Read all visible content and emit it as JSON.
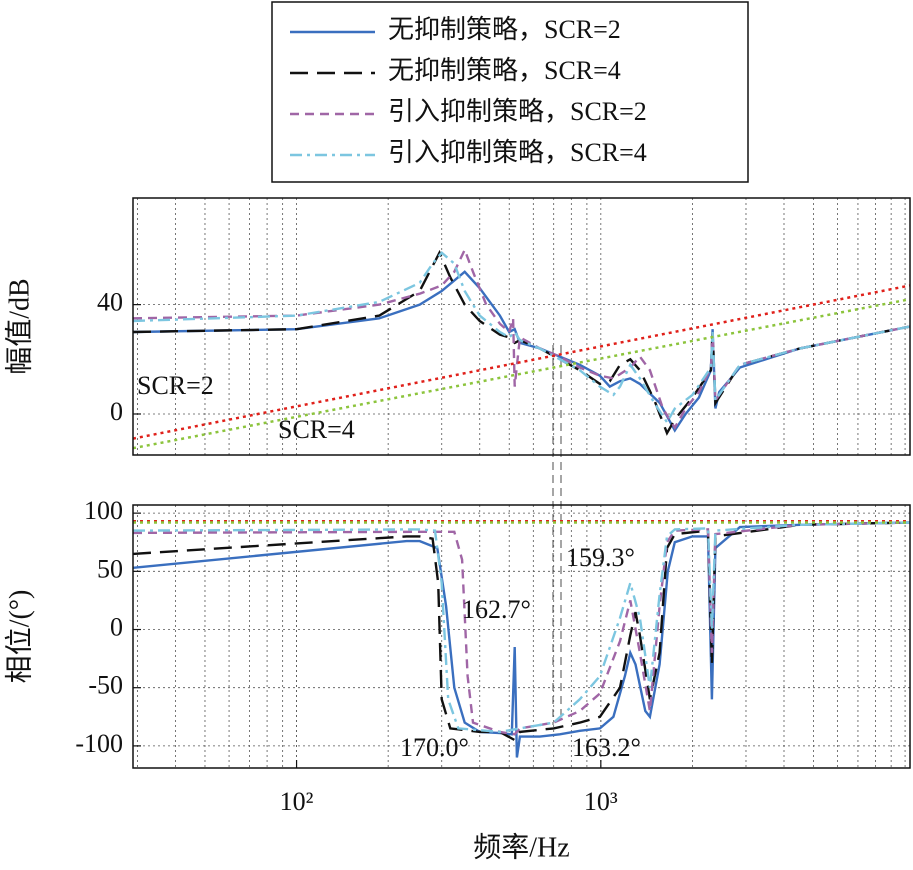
{
  "chart_data": [
    {
      "type": "line",
      "xscale": "log",
      "xlim": [
        29,
        10380
      ],
      "ylim": [
        -15,
        79
      ],
      "yticks": [
        0,
        40
      ],
      "ylabel": "幅值/dB",
      "grid": true,
      "minor_grid": true,
      "legend": "top",
      "annotations": [
        {
          "text": "SCR=2",
          "color": "#111111"
        },
        {
          "text": "SCR=4",
          "color": "#111111"
        }
      ],
      "series": [
        {
          "name": "无抑制策略，SCR=2",
          "color": "#3a6fbf",
          "linestyle": "solid",
          "x": [
            29,
            100,
            187,
            254,
            300,
            357,
            400,
            466,
            500,
            521,
            542,
            630,
            733,
            853,
            993,
            1070,
            1156,
            1250,
            1344,
            1564,
            1751,
            1900,
            2100,
            2300,
            2330,
            2380,
            2450,
            2866,
            4516,
            10380
          ],
          "values": [
            30,
            31,
            35,
            40,
            45,
            52,
            46,
            36,
            30,
            31,
            26,
            24,
            21,
            18,
            14,
            10,
            12,
            13,
            11,
            4,
            -6,
            0,
            6,
            16,
            31,
            2,
            8,
            17,
            24,
            32
          ]
        },
        {
          "name": "无抑制策略，SCR=4",
          "color": "#111111",
          "linestyle": "dashed",
          "x": [
            29,
            100,
            187,
            254,
            295,
            320,
            357,
            400,
            466,
            500,
            521,
            542,
            630,
            733,
            853,
            993,
            1070,
            1156,
            1250,
            1344,
            1500,
            1650,
            1751,
            2000,
            2300,
            2330,
            2380,
            2866,
            4516,
            10380
          ],
          "values": [
            30,
            31,
            36,
            45,
            59,
            50,
            40,
            34,
            29,
            28,
            26,
            27,
            24,
            20,
            16,
            11,
            12,
            18,
            20,
            16,
            5,
            -7,
            -2,
            6,
            16,
            30,
            4,
            18,
            24,
            32
          ]
        },
        {
          "name": "引入抑制策略，SCR=2",
          "color": "#a066a6",
          "linestyle": "shortdash",
          "x": [
            29,
            100,
            187,
            254,
            300,
            330,
            357,
            380,
            420,
            466,
            500,
            515,
            521,
            542,
            630,
            733,
            853,
            993,
            1100,
            1250,
            1344,
            1450,
            1600,
            1751,
            1900,
            2100,
            2300,
            2330,
            2380,
            2866,
            4516,
            10380
          ],
          "values": [
            35,
            36,
            40,
            44,
            47,
            52,
            60,
            52,
            40,
            33,
            30,
            35,
            10,
            28,
            24,
            21,
            17,
            14,
            13,
            17,
            21,
            16,
            2,
            -5,
            2,
            8,
            17,
            30,
            5,
            18,
            24,
            32
          ]
        },
        {
          "name": "引入抑制策略，SCR=4",
          "color": "#7cc6e0",
          "linestyle": "dashdot",
          "x": [
            29,
            100,
            187,
            254,
            280,
            300,
            330,
            357,
            400,
            466,
            500,
            521,
            542,
            630,
            733,
            853,
            993,
            1100,
            1156,
            1250,
            1344,
            1500,
            1650,
            1751,
            2000,
            2300,
            2330,
            2380,
            2866,
            4516,
            10380
          ],
          "values": [
            34,
            36,
            41,
            48,
            55,
            59,
            55,
            45,
            36,
            30,
            28,
            30,
            27,
            24,
            20,
            16,
            10,
            7,
            10,
            18,
            13,
            4,
            -3,
            2,
            7,
            17,
            30,
            5,
            18,
            24,
            32
          ]
        },
        {
          "color": "#e0201a",
          "linestyle": "dotted",
          "x": [
            29,
            10380
          ],
          "values": [
            -9,
            47
          ]
        },
        {
          "color": "#8cc43c",
          "linestyle": "dotted",
          "x": [
            29,
            10380
          ],
          "values": [
            -12.5,
            42
          ]
        }
      ]
    },
    {
      "type": "line",
      "xscale": "log",
      "xlim": [
        29,
        10380
      ],
      "ylim": [
        -119,
        107
      ],
      "yticks": [
        -100,
        -50,
        0,
        50,
        100
      ],
      "ylabel": "相位/(°)",
      "xlabel": "频率/Hz",
      "grid": true,
      "minor_grid": true,
      "xticks": [
        {
          "value": 100,
          "label": "10²"
        },
        {
          "value": 1000,
          "label": "10³"
        }
      ],
      "annotations": [
        {
          "text": "162.7°",
          "color": "#a066a6"
        },
        {
          "text": "159.3°",
          "color": "#7cc6e0"
        },
        {
          "text": "170.0°",
          "color": "#3a6fbf"
        },
        {
          "text": "163.2°",
          "color": "#111111"
        }
      ],
      "series": [
        {
          "color": "#3a6fbf",
          "linestyle": "solid",
          "x": [
            29,
            230,
            254,
            290,
            310,
            330,
            357,
            400,
            466,
            510,
            521,
            530,
            542,
            630,
            733,
            853,
            993,
            1100,
            1200,
            1250,
            1300,
            1400,
            1450,
            1560,
            1660,
            1751,
            2000,
            2250,
            2318,
            2380,
            2866,
            4516,
            10380
          ],
          "values": [
            53,
            76,
            76,
            70,
            20,
            -50,
            -80,
            -88,
            -89,
            -90,
            -15,
            -110,
            -92,
            -92,
            -90,
            -87,
            -85,
            -75,
            -40,
            -20,
            -30,
            -70,
            -75,
            -30,
            50,
            75,
            80,
            80,
            -60,
            70,
            88,
            90,
            92
          ]
        },
        {
          "color": "#111111",
          "linestyle": "dashed",
          "x": [
            29,
            230,
            254,
            280,
            292,
            300,
            320,
            400,
            466,
            521,
            542,
            700,
            853,
            993,
            1156,
            1250,
            1300,
            1344,
            1450,
            1560,
            1650,
            1751,
            2250,
            2318,
            2380,
            4516,
            10380
          ],
          "values": [
            65,
            80,
            80,
            78,
            40,
            -60,
            -85,
            -88,
            -88,
            -95,
            -88,
            -85,
            -80,
            -75,
            -50,
            -5,
            15,
            -5,
            -60,
            -20,
            70,
            82,
            85,
            -30,
            80,
            90,
            92
          ]
        },
        {
          "color": "#a066a6",
          "linestyle": "shortdash",
          "x": [
            29,
            254,
            330,
            350,
            365,
            380,
            466,
            521,
            542,
            700,
            853,
            993,
            1156,
            1250,
            1344,
            1450,
            1560,
            1650,
            1751,
            2250,
            2318,
            2380,
            4516,
            10380
          ],
          "values": [
            83,
            84,
            84,
            60,
            -40,
            -80,
            -88,
            -90,
            -85,
            -80,
            -70,
            -55,
            -10,
            25,
            -20,
            -70,
            20,
            75,
            85,
            86,
            -20,
            82,
            90,
            92
          ]
        },
        {
          "color": "#7cc6e0",
          "linestyle": "dashdot",
          "x": [
            29,
            254,
            285,
            300,
            315,
            340,
            466,
            542,
            700,
            853,
            993,
            1156,
            1250,
            1344,
            1450,
            1560,
            1650,
            1751,
            2250,
            2318,
            2380,
            4516,
            10380
          ],
          "values": [
            85,
            86,
            85,
            40,
            -60,
            -85,
            -88,
            -85,
            -80,
            -60,
            -40,
            10,
            40,
            10,
            -50,
            30,
            80,
            86,
            87,
            0,
            85,
            90,
            92
          ]
        },
        {
          "color": "#e0201a",
          "linestyle": "dotted",
          "x": [
            29,
            10380
          ],
          "values": [
            93,
            93
          ]
        },
        {
          "color": "#8cc43c",
          "linestyle": "dotted",
          "x": [
            29,
            10380
          ],
          "values": [
            92,
            92
          ]
        }
      ]
    }
  ]
}
